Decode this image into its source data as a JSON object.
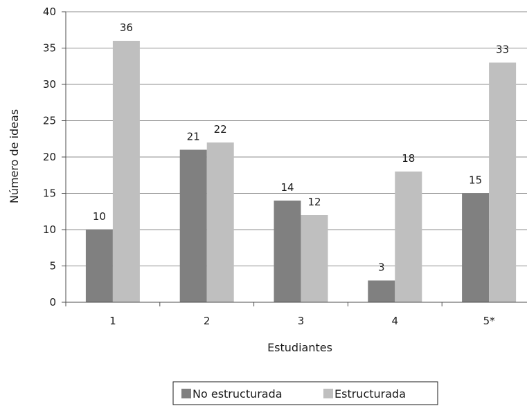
{
  "chart_data": {
    "type": "bar",
    "categories": [
      "1",
      "2",
      "3",
      "4",
      "5*"
    ],
    "series": [
      {
        "name": "No estructurada",
        "values": [
          10,
          21,
          14,
          3,
          15
        ],
        "color": "#808080"
      },
      {
        "name": "Estructurada",
        "values": [
          36,
          22,
          12,
          18,
          33
        ],
        "color": "#bfbfbf"
      }
    ],
    "title": "",
    "xlabel": "Estudiantes",
    "ylabel": "Número de ideas",
    "ylim": [
      0,
      40
    ],
    "yticks": [
      0,
      5,
      10,
      15,
      20,
      25,
      30,
      35,
      40
    ],
    "grid": true,
    "legend_position": "bottom",
    "data_labels": true
  }
}
